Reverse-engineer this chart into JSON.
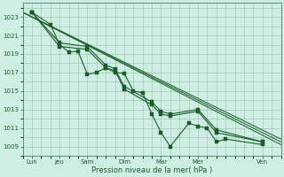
{
  "background_color": "#ceeee4",
  "grid_color": "#9bbfb0",
  "line_color": "#1a5c28",
  "spine_color": "#4a8060",
  "yticks": [
    1009,
    1011,
    1013,
    1015,
    1017,
    1019,
    1021,
    1023
  ],
  "ylim": [
    1008.0,
    1024.5
  ],
  "xlim": [
    0,
    14
  ],
  "xlabel": "Pression niveau de la mer( hPa )",
  "xtick_labels": [
    "Lun",
    "Jeu",
    "Sam",
    "Dim",
    "Mar",
    "Mer",
    "Ven"
  ],
  "xtick_pos": [
    0.5,
    2.0,
    3.5,
    5.5,
    7.5,
    9.5,
    13.0
  ],
  "series_straight1": [
    [
      0,
      1023.5
    ],
    [
      14,
      1009.2
    ]
  ],
  "series_straight2": [
    [
      0,
      1023.5
    ],
    [
      14,
      1009.5
    ]
  ],
  "series_straight3": [
    [
      0,
      1023.5
    ],
    [
      14,
      1009.8
    ]
  ],
  "series_jagged_x": [
    0.5,
    1.5,
    2.0,
    2.5,
    3.0,
    3.5,
    4.0,
    4.5,
    5.0,
    5.5,
    6.0,
    6.5,
    7.0,
    7.5,
    8.0,
    9.0,
    9.5,
    10.0,
    10.5,
    11.0,
    13.0
  ],
  "series_jagged_y": [
    1023.5,
    1022.2,
    1020.0,
    1019.2,
    1019.3,
    1016.8,
    1017.0,
    1017.5,
    1017.0,
    1016.9,
    1015.0,
    1014.8,
    1012.5,
    1010.5,
    1009.0,
    1011.5,
    1011.2,
    1011.0,
    1009.5,
    1009.8,
    1009.2
  ],
  "series2_x": [
    0.5,
    2.0,
    3.5,
    4.5,
    5.0,
    5.5,
    7.0,
    7.5,
    8.0,
    9.5,
    10.5,
    13.0
  ],
  "series2_y": [
    1023.5,
    1019.8,
    1019.5,
    1017.5,
    1017.2,
    1015.2,
    1013.5,
    1012.5,
    1012.3,
    1012.8,
    1010.5,
    1009.5
  ],
  "series3_x": [
    0.5,
    2.0,
    3.5,
    4.5,
    5.0,
    5.5,
    7.0,
    7.5,
    8.0,
    9.5,
    10.5,
    13.0
  ],
  "series3_y": [
    1023.5,
    1020.2,
    1019.8,
    1017.8,
    1017.4,
    1015.5,
    1013.8,
    1012.8,
    1012.5,
    1013.0,
    1010.8,
    1009.5
  ]
}
